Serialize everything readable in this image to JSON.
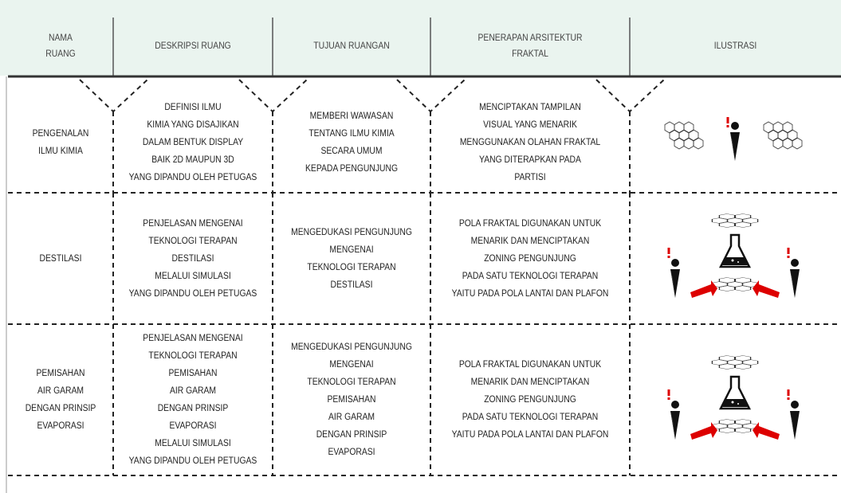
{
  "header": [
    [
      "NAMA",
      "RUANG"
    ],
    [
      "DESKRIPSI RUANG"
    ],
    [
      "TUJUAN RUANGAN"
    ],
    [
      "PENERAPAN ARSITEKTUR",
      "FRAKTAL"
    ],
    [
      "ILUSTRASI"
    ]
  ],
  "rows": [
    [
      [
        "PENGENALAN",
        "ILMU KIMIA"
      ],
      [
        "DEFINISI ILMU",
        "KIMIA YANG DISAJIKAN",
        "DALAM BENTUK DISPLAY",
        "BAIK 2D MAUPUN 3D",
        "YANG DIPANDU OLEH PETUGAS"
      ],
      [
        "MEMBERI WAWASAN",
        "TENTANG ILMU KIMIA",
        "SECARA UMUM",
        "KEPADA PENGUNJUNG"
      ],
      [
        "MENCIPTAKAN TAMPILAN",
        "VISUAL YANG MENARIK",
        "MENGGUNAKAN OLAHAN FRAKTAL",
        "YANG DITERAPKAN PADA",
        "PARTISI"
      ]
    ],
    [
      [
        "DESTILASI"
      ],
      [
        "PENJELASAN MENGENAI",
        "TEKNOLOGI TERAPAN",
        "DESTILASI",
        "MELALUI SIMULASI",
        "YANG DIPANDU OLEH PETUGAS"
      ],
      [
        "MENGEDUKASI PENGUNJUNG",
        "MENGENAI",
        "TEKNOLOGI TERAPAN",
        "DESTILASI"
      ],
      [
        "POLA FRAKTAL DIGUNAKAN UNTUK",
        "MENARIK DAN MENCIPTAKAN",
        "ZONING PENGUNJUNG",
        "PADA SATU TEKNOLOGI TERAPAN",
        "YAITU PADA POLA LANTAI DAN PLAFON"
      ]
    ],
    [
      [
        "PEMISAHAN",
        "AIR GARAM",
        "DENGAN PRINSIP",
        "EVAPORASI"
      ],
      [
        "PENJELASAN MENGENAI",
        "TEKNOLOGI TERAPAN",
        "PEMISAHAN",
        "AIR GARAM",
        "DENGAN PRINSIP",
        "EVAPORASI",
        "MELALUI SIMULASI",
        "YANG DIPANDU OLEH PETUGAS"
      ],
      [
        "MENGEDUKASI PENGUNJUNG",
        "MENGENAI",
        "TEKNOLOGI TERAPAN",
        "PEMISAHAN",
        "AIR GARAM",
        "DENGAN PRINSIP",
        "EVAPORASI"
      ],
      [
        "POLA FRAKTAL DIGUNAKAN UNTUK",
        "MENARIK DAN MENCIPTAKAN",
        "ZONING PENGUNJUNG",
        "PADA SATU TEKNOLOGI TERAPAN",
        "YAITU PADA POLA LANTAI DAN PLAFON"
      ]
    ]
  ]
}
